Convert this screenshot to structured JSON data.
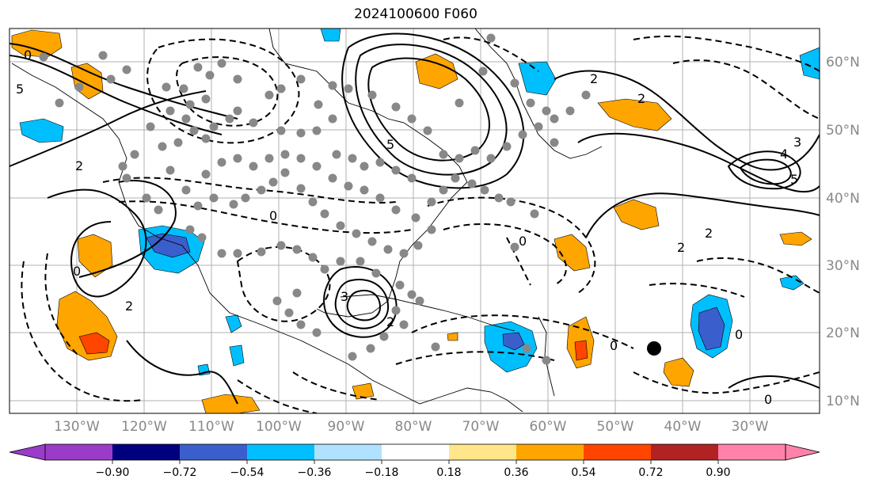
{
  "title": "2024100600 F060",
  "map": {
    "lon_labels": [
      "130°W",
      "120°W",
      "110°W",
      "100°W",
      "90°W",
      "80°W",
      "70°W",
      "60°W",
      "50°W",
      "40°W",
      "30°W"
    ],
    "lat_labels": [
      "60°N",
      "50°N",
      "40°N",
      "30°N",
      "20°N",
      "10°N"
    ],
    "contour_labels": [
      "0",
      "2",
      "5",
      "0",
      "2",
      "3",
      "5",
      "2",
      "0",
      "0",
      "2",
      "3",
      "2",
      "4",
      "5",
      "0",
      "2",
      "2",
      "0",
      "0"
    ]
  },
  "colorbar": {
    "labels": [
      "−0.90",
      "−0.72",
      "−0.54",
      "−0.36",
      "−0.18",
      "0.18",
      "0.36",
      "0.54",
      "0.72",
      "0.90"
    ],
    "colors": [
      "#9a3cc8",
      "#00007f",
      "#3a5fcd",
      "#00bfff",
      "#b0e2ff",
      "#ffffff",
      "#ffe68a",
      "#ffa500",
      "#ff4500",
      "#b22222",
      "#ff82ab"
    ]
  },
  "fill_colors": {
    "light_blue": "#00bfff",
    "dark_blue": "#3a5fcd",
    "orange": "#ffa500",
    "red_orange": "#ff4500"
  },
  "marker_color": "#888888"
}
